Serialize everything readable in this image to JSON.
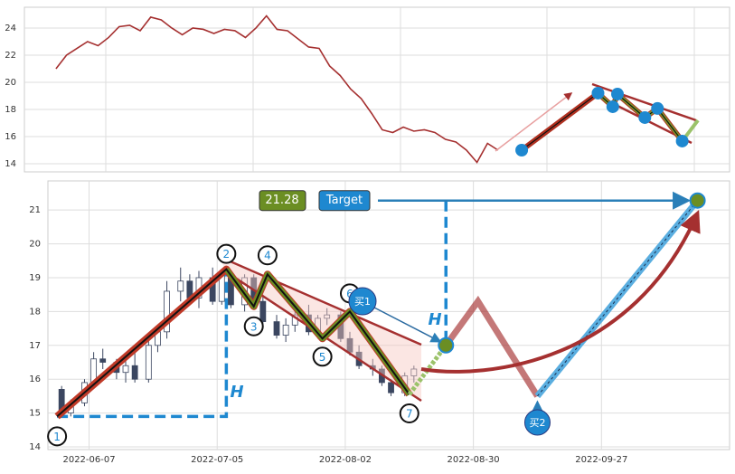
{
  "chart_data": [
    {
      "type": "line",
      "x": [
        6,
        8,
        10,
        12,
        14,
        16,
        18,
        20,
        22,
        24,
        26,
        28,
        30,
        32,
        34,
        36,
        38,
        40,
        42,
        44,
        46,
        48,
        50,
        52,
        54,
        56,
        58,
        60,
        62,
        64,
        66,
        68,
        70,
        72,
        74,
        76,
        78,
        80,
        82,
        84,
        86,
        88,
        90
      ],
      "series": [
        {
          "color": "#a53030",
          "values": [
            21,
            22,
            22.5,
            23,
            22.7,
            23.3,
            24.1,
            24.2,
            23.8,
            24.8,
            24.6,
            24,
            23.5,
            24,
            23.9,
            23.6,
            23.9,
            23.8,
            23.3,
            24,
            24.9,
            23.9,
            23.8,
            23.2,
            22.6,
            22.5,
            21.2,
            20.5,
            19.5,
            18.8,
            17.7,
            16.5,
            16.3,
            16.7,
            16.4,
            16.5,
            16.3,
            15.8,
            15.6,
            15,
            14.1,
            15.5,
            15
          ]
        }
      ],
      "pattern": {
        "x": [
          94.5,
          109,
          111.8,
          112.7,
          117.9,
          120.3,
          125
        ],
        "values": [
          15,
          19.2,
          18.2,
          19.13,
          17.4,
          18.07,
          15.67
        ]
      },
      "xlim": [
        0,
        134
      ],
      "ylim": [
        13.4,
        25.53
      ],
      "yticks": [
        14,
        16,
        18,
        20,
        22,
        24
      ],
      "grid": true
    },
    {
      "type": "candlestick",
      "x": [
        "2022-06-01",
        "2022-06-03",
        "2022-06-06",
        "2022-06-08",
        "2022-06-10",
        "2022-06-13",
        "2022-06-15",
        "2022-06-17",
        "2022-06-20",
        "2022-06-22",
        "2022-06-24",
        "2022-06-27",
        "2022-06-29",
        "2022-07-01",
        "2022-07-04",
        "2022-07-06",
        "2022-07-08",
        "2022-07-11",
        "2022-07-13",
        "2022-07-15",
        "2022-07-18",
        "2022-07-20",
        "2022-07-22",
        "2022-07-25",
        "2022-07-27",
        "2022-07-29",
        "2022-08-01",
        "2022-08-03",
        "2022-08-05",
        "2022-08-08",
        "2022-08-10",
        "2022-08-12",
        "2022-08-15",
        "2022-08-17"
      ],
      "open": [
        15.7,
        15.0,
        15.3,
        15.9,
        16.6,
        16.5,
        16.2,
        16.4,
        16.0,
        17.0,
        17.4,
        18.6,
        18.9,
        18.4,
        19.0,
        18.3,
        19.1,
        18.2,
        19.0,
        18.3,
        17.7,
        17.3,
        17.6,
        17.9,
        17.4,
        17.8,
        17.9,
        17.2,
        16.8,
        16.4,
        16.3,
        15.9,
        15.6,
        16.1
      ],
      "high": [
        15.8,
        15.4,
        16.0,
        16.8,
        16.9,
        16.6,
        16.6,
        16.9,
        17.2,
        17.6,
        18.9,
        19.3,
        19.1,
        19.2,
        19.3,
        19.2,
        19.2,
        19.1,
        19.1,
        18.5,
        17.9,
        17.8,
        18.0,
        18.2,
        17.9,
        18.1,
        18.0,
        17.4,
        17.0,
        16.6,
        16.4,
        16.0,
        16.2,
        16.4
      ],
      "low": [
        14.9,
        14.9,
        15.2,
        15.8,
        16.3,
        16.0,
        15.9,
        15.9,
        15.9,
        16.8,
        17.2,
        18.3,
        18.2,
        18.1,
        18.2,
        18.2,
        18.1,
        18.0,
        18.2,
        17.6,
        17.2,
        17.1,
        17.4,
        17.3,
        17.2,
        17.6,
        17.1,
        16.7,
        16.3,
        16.1,
        15.8,
        15.5,
        15.5,
        15.9
      ],
      "close": [
        15.0,
        15.3,
        15.9,
        16.6,
        16.5,
        16.2,
        16.4,
        16.0,
        17.0,
        17.4,
        18.6,
        18.9,
        18.4,
        19.0,
        18.3,
        19.1,
        18.2,
        19.0,
        18.3,
        17.7,
        17.3,
        17.6,
        17.9,
        17.4,
        17.8,
        17.9,
        17.2,
        16.8,
        16.4,
        16.3,
        15.9,
        15.6,
        16.1,
        16.3
      ],
      "up_color": "#ffffff",
      "down_color": "#3b4660",
      "pattern": {
        "x": [
          "2022-05-31",
          "2022-07-07",
          "2022-07-13",
          "2022-07-16",
          "2022-07-28",
          "2022-08-03",
          "2022-08-16"
        ],
        "values": [
          14.9,
          19.25,
          18.15,
          19.1,
          17.2,
          18.0,
          15.55
        ],
        "labels": [
          "1",
          "2",
          "3",
          "4",
          "5",
          "6",
          "7"
        ]
      },
      "projection": {
        "x": [
          "2022-08-24",
          "2022-08-31",
          "2022-09-13",
          "2022-10-18"
        ],
        "values": [
          17.0,
          18.3,
          15.5,
          21.28
        ]
      },
      "target": {
        "value": 21.28,
        "label": "Target"
      },
      "h_label": "H",
      "buy_labels": [
        "买1",
        "买2"
      ],
      "xlim": [
        "2022-05-29",
        "2022-10-25"
      ],
      "ylim": [
        13.92,
        21.86
      ],
      "xticks": [
        "2022-06-07",
        "2022-07-05",
        "2022-08-02",
        "2022-08-30",
        "2022-09-27"
      ],
      "yticks": [
        14,
        15,
        16,
        17,
        18,
        19,
        20,
        21
      ],
      "grid": true
    }
  ]
}
